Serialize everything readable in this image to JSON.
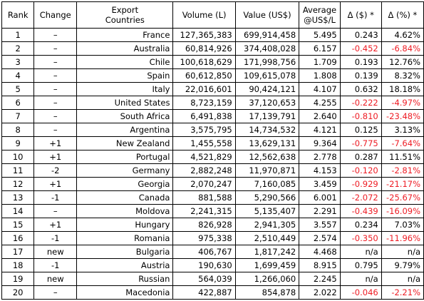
{
  "table": {
    "headers": [
      [
        "Rank"
      ],
      [
        "Change"
      ],
      [
        "Export",
        "Countries"
      ],
      [
        "Volume (L)"
      ],
      [
        "Value (US$)"
      ],
      [
        "Average",
        "@US$/L"
      ],
      [
        "Δ ($) *"
      ],
      [
        "Δ (%) *"
      ]
    ],
    "rows": [
      [
        "1",
        "–",
        "France",
        "127,365,383",
        "699,914,458",
        "5.495",
        "0.243",
        "4.62%"
      ],
      [
        "2",
        "–",
        "Australia",
        "60,814,926",
        "374,408,028",
        "6.157",
        "-0.452",
        "-6.84%"
      ],
      [
        "3",
        "–",
        "Chile",
        "100,618,629",
        "171,998,756",
        "1.709",
        "0.193",
        "12.76%"
      ],
      [
        "4",
        "–",
        "Spain",
        "60,612,850",
        "109,615,078",
        "1.808",
        "0.139",
        "8.32%"
      ],
      [
        "5",
        "–",
        "Italy",
        "22,016,601",
        "90,424,121",
        "4.107",
        "0.632",
        "18.18%"
      ],
      [
        "6",
        "–",
        "United States",
        "8,723,159",
        "37,120,653",
        "4.255",
        "-0.222",
        "-4.97%"
      ],
      [
        "7",
        "–",
        "South Africa",
        "6,491,838",
        "17,139,791",
        "2.640",
        "-0.810",
        "-23.48%"
      ],
      [
        "8",
        "–",
        "Argentina",
        "3,575,795",
        "14,734,532",
        "4.121",
        "0.125",
        "3.13%"
      ],
      [
        "9",
        "+1",
        "New Zealand",
        "1,455,558",
        "13,629,131",
        "9.364",
        "-0.775",
        "-7.64%"
      ],
      [
        "10",
        "+1",
        "Portugal",
        "4,521,829",
        "12,562,638",
        "2.778",
        "0.287",
        "11.51%"
      ],
      [
        "11",
        "-2",
        "Germany",
        "2,882,248",
        "11,970,871",
        "4.153",
        "-0.120",
        "-2.81%"
      ],
      [
        "12",
        "+1",
        "Georgia",
        "2,070,247",
        "7,160,085",
        "3.459",
        "-0.929",
        "-21.17%"
      ],
      [
        "13",
        "-1",
        "Canada",
        "881,588",
        "5,290,566",
        "6.001",
        "-2.072",
        "-25.67%"
      ],
      [
        "14",
        "–",
        "Moldova",
        "2,241,315",
        "5,135,407",
        "2.291",
        "-0.439",
        "-16.09%"
      ],
      [
        "15",
        "+1",
        "Hungary",
        "826,928",
        "2,941,305",
        "3.557",
        "0.234",
        "7.03%"
      ],
      [
        "16",
        "-1",
        "Romania",
        "975,338",
        "2,510,449",
        "2.574",
        "-0.350",
        "-11.96%"
      ],
      [
        "17",
        "new",
        "Bulgaria",
        "406,767",
        "1,817,242",
        "4.468",
        "n/a",
        "n/a"
      ],
      [
        "18",
        "-1",
        "Austria",
        "190,630",
        "1,699,459",
        "8.915",
        "0.795",
        "9.79%"
      ],
      [
        "19",
        "new",
        "Russian",
        "564,039",
        "1,266,060",
        "2.245",
        "n/a",
        "n/a"
      ],
      [
        "20",
        "–",
        "Macedonia",
        "422,887",
        "854,878",
        "2.022",
        "-0.046",
        "-2.21%"
      ]
    ],
    "colors": {
      "negative": "#ee1c24",
      "text": "#000000",
      "border": "#000000"
    }
  }
}
